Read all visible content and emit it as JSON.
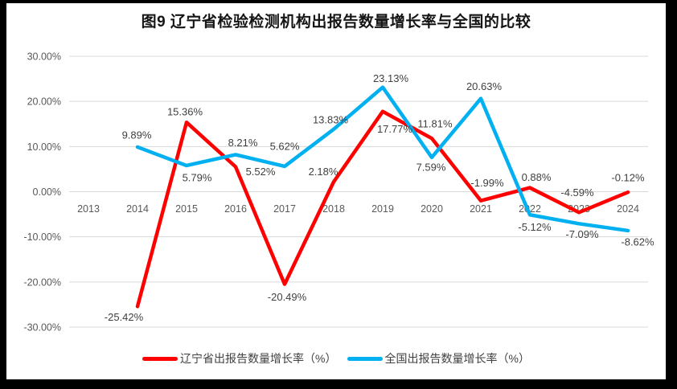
{
  "chart_data": {
    "type": "line",
    "title": "图9  辽宁省检验检测机构出报告数量增长率与全国的比较",
    "categories": [
      "2013",
      "2014",
      "2015",
      "2016",
      "2017",
      "2018",
      "2019",
      "2020",
      "2021",
      "2022",
      "2023",
      "2024"
    ],
    "y_axis": {
      "min": -30,
      "max": 30,
      "step": 10,
      "ticks": [
        {
          "value": 30,
          "label": "30.00%"
        },
        {
          "value": 20,
          "label": "20.00%"
        },
        {
          "value": 10,
          "label": "10.00%"
        },
        {
          "value": 0,
          "label": "0.00%"
        },
        {
          "value": -10,
          "label": "-10.00%"
        },
        {
          "value": -20,
          "label": "-20.00%"
        },
        {
          "value": -30,
          "label": "-30.00%"
        }
      ]
    },
    "grid": true,
    "grid_color": "#d9d9d9",
    "axis_text_color": "#595959",
    "label_text_color": "#404040",
    "legend_position": "bottom",
    "series": [
      {
        "name": "辽宁省出报告数量增长率（%）",
        "color": "#ff0000",
        "values": [
          null,
          -25.42,
          15.36,
          5.52,
          -20.49,
          2.18,
          17.77,
          11.81,
          -1.99,
          0.88,
          -4.59,
          -0.12
        ],
        "labels": [
          null,
          "-25.42%",
          "15.36%",
          "5.52%",
          "-20.49%",
          "2.18%",
          "17.77%",
          "11.81%",
          "-1.99%",
          "0.88%",
          "-4.59%",
          "-0.12%"
        ],
        "label_offsets": [
          null,
          [
            -17,
            13
          ],
          [
            -2,
            -13
          ],
          [
            31,
            6
          ],
          [
            3,
            16
          ],
          [
            -13,
            -13
          ],
          [
            15,
            22
          ],
          [
            4,
            -18
          ],
          [
            8,
            -22
          ],
          [
            8,
            -13
          ],
          [
            -2,
            -25
          ],
          [
            0,
            -18
          ]
        ]
      },
      {
        "name": "全国出报告数量增长率（%）",
        "color": "#00b0f0",
        "values": [
          null,
          9.89,
          5.79,
          8.21,
          5.62,
          13.83,
          23.13,
          7.59,
          20.63,
          -5.12,
          -7.09,
          -8.62
        ],
        "labels": [
          null,
          "9.89%",
          "5.79%",
          "8.21%",
          "5.62%",
          "13.83%",
          "23.13%",
          "7.59%",
          "20.63%",
          "-5.12%",
          "-7.09%",
          "-8.62%"
        ],
        "label_offsets": [
          null,
          [
            -1,
            -15
          ],
          [
            13,
            15
          ],
          [
            9,
            -15
          ],
          [
            0,
            -25
          ],
          [
            -4,
            -12
          ],
          [
            10,
            -11
          ],
          [
            -1,
            12
          ],
          [
            4,
            -15
          ],
          [
            6,
            15
          ],
          [
            4,
            13
          ],
          [
            12,
            14
          ]
        ]
      }
    ]
  }
}
